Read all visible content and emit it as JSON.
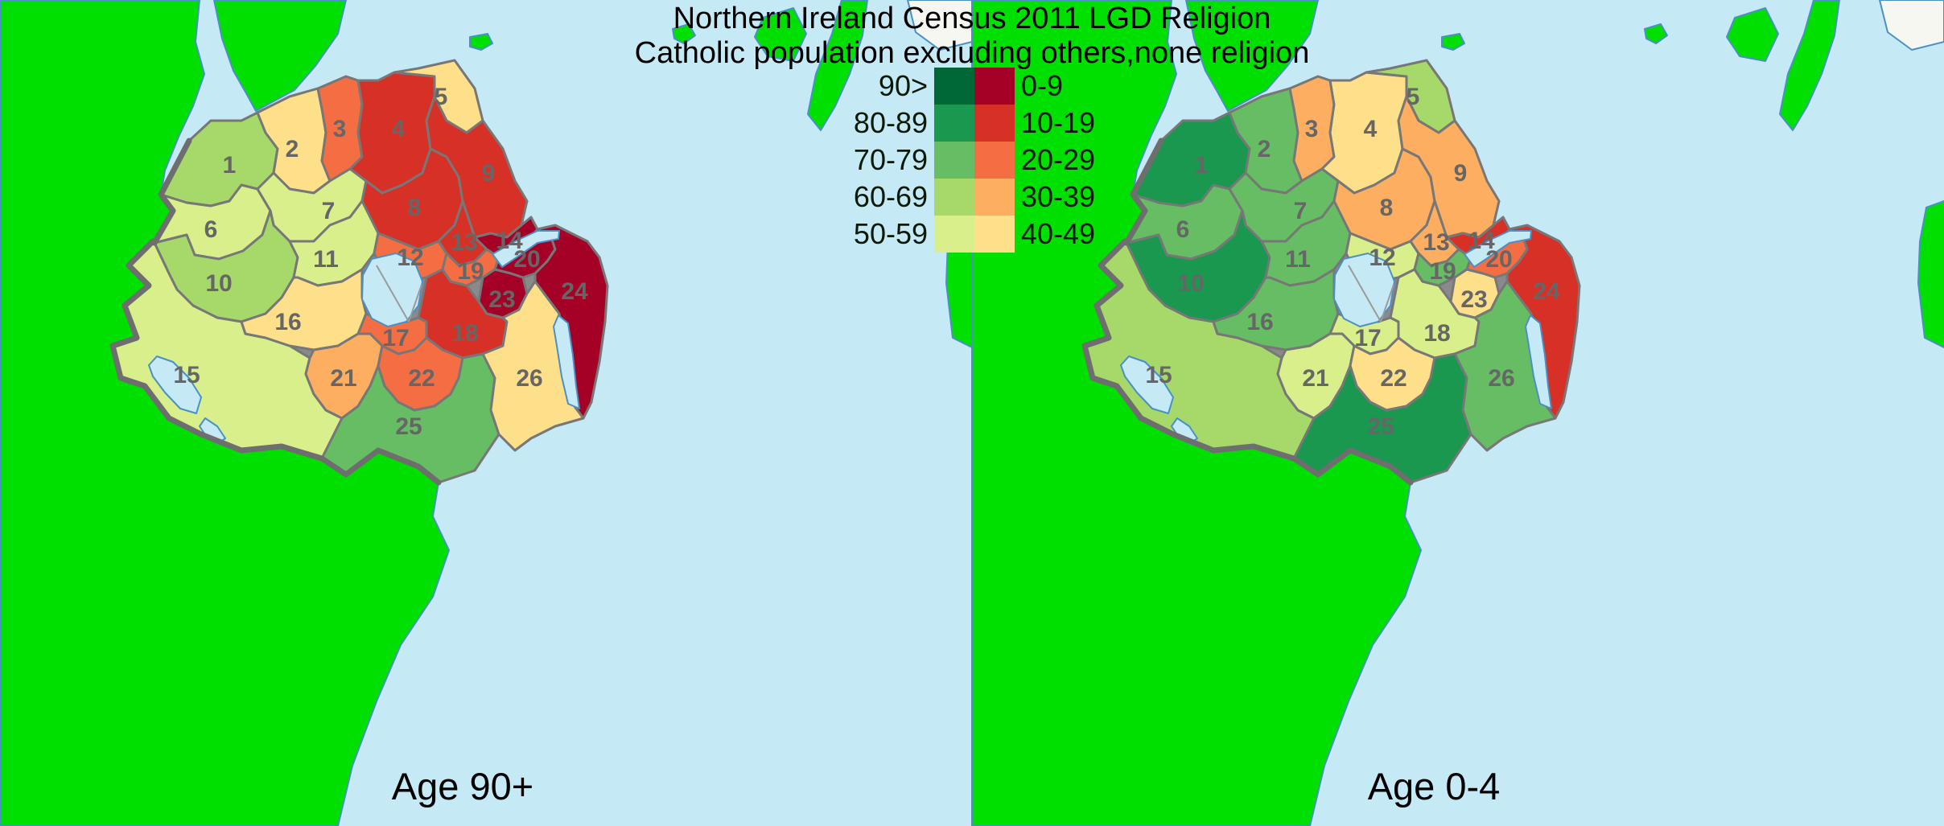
{
  "title": {
    "line1": "Northern Ireland Census 2011 LGD Religion",
    "line2": "Catholic population excluding others,none religion"
  },
  "legend": {
    "rows": [
      {
        "green_label": "90>",
        "green_color": "#006837",
        "red_label": "0-9",
        "red_color": "#a50026"
      },
      {
        "green_label": "80-89",
        "green_color": "#1a9850",
        "red_label": "10-19",
        "red_color": "#d73027"
      },
      {
        "green_label": "70-79",
        "green_color": "#66bd63",
        "red_label": "20-29",
        "red_color": "#f46d43"
      },
      {
        "green_label": "60-69",
        "green_color": "#a6d96a",
        "red_label": "30-39",
        "red_color": "#fdae61"
      },
      {
        "green_label": "50-59",
        "green_color": "#d9ef8b",
        "red_label": "40-49",
        "red_color": "#fee08b"
      }
    ]
  },
  "band_colors": {
    "90>": "#006837",
    "80-89": "#1a9850",
    "70-79": "#66bd63",
    "60-69": "#a6d96a",
    "50-59": "#d9ef8b",
    "40-49": "#fee08b",
    "30-39": "#fdae61",
    "20-29": "#f46d43",
    "10-19": "#d73027",
    "0-9": "#a50026"
  },
  "maps": [
    {
      "label": "Age 90+",
      "region_bands": {
        "1": "60-69",
        "2": "40-49",
        "3": "20-29",
        "4": "10-19",
        "5": "40-49",
        "6": "50-59",
        "7": "50-59",
        "8": "10-19",
        "9": "10-19",
        "10": "60-69",
        "11": "50-59",
        "12": "20-29",
        "13": "10-19",
        "14": "0-9",
        "15": "50-59",
        "16": "40-49",
        "17": "20-29",
        "18": "10-19",
        "19": "20-29",
        "20": "0-9",
        "21": "30-39",
        "22": "20-29",
        "23": "0-9",
        "24": "0-9",
        "25": "70-79",
        "26": "40-49"
      }
    },
    {
      "label": "Age 0-4",
      "region_bands": {
        "1": "80-89",
        "2": "70-79",
        "3": "30-39",
        "4": "40-49",
        "5": "60-69",
        "6": "70-79",
        "7": "70-79",
        "8": "30-39",
        "9": "30-39",
        "10": "80-89",
        "11": "70-79",
        "12": "50-59",
        "13": "30-39",
        "14": "10-19",
        "15": "60-69",
        "16": "70-79",
        "17": "50-59",
        "18": "50-59",
        "19": "70-79",
        "20": "20-29",
        "21": "50-59",
        "22": "40-49",
        "23": "40-49",
        "24": "10-19",
        "25": "80-89",
        "26": "70-79"
      }
    }
  ],
  "colors": {
    "sea": "#c6e9f6",
    "republic_land": "#00e000",
    "island_white": "#f7f7f2",
    "coastline": "#4a90c4",
    "region_border": "#777777",
    "international_border": "#6e6e6e",
    "region_number": "#666666",
    "lake": "#c6e9f6"
  }
}
